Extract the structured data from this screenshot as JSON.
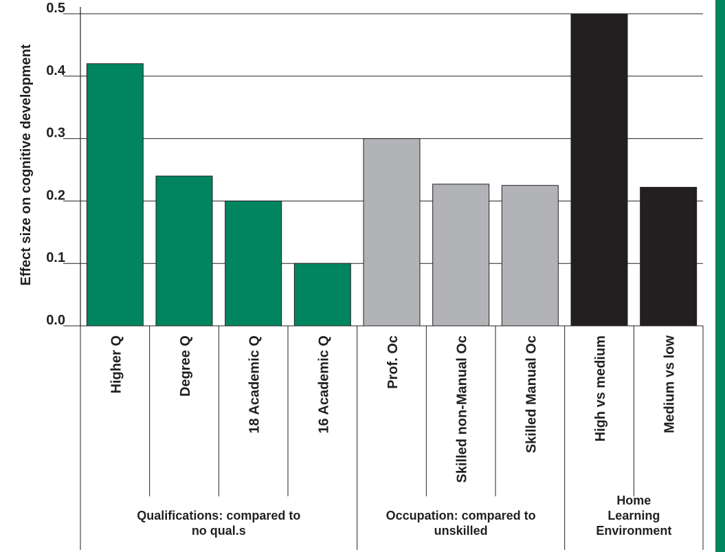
{
  "chart_data": {
    "type": "bar",
    "ylabel": "Effect size on cognitive development",
    "ylim": [
      0,
      0.5
    ],
    "yticks": [
      "0.0",
      "0.1",
      "0.2",
      "0.3",
      "0.4",
      "0.5"
    ],
    "grid": true,
    "categories": [
      "Higher Q",
      "Degree Q",
      "18 Academic Q",
      "16 Academic Q",
      "Prof. Oc",
      "Skilled non-Manual Oc",
      "Skilled Manual Oc",
      "High vs medium",
      "Medium vs low"
    ],
    "values": [
      0.42,
      0.24,
      0.2,
      0.1,
      0.3,
      0.227,
      0.225,
      0.5,
      0.222
    ],
    "colors": [
      "#00855f",
      "#00855f",
      "#00855f",
      "#00855f",
      "#b1b3b6",
      "#b1b3b6",
      "#b1b3b6",
      "#231f20",
      "#231f20"
    ],
    "groups": [
      {
        "lines": [
          "Qualifications: compared to",
          "no qual.s"
        ],
        "start": 0,
        "end": 3
      },
      {
        "lines": [
          "Occupation: compared to",
          "unskilled"
        ],
        "start": 4,
        "end": 6
      },
      {
        "lines": [
          "Home",
          "Learning",
          "Environment"
        ],
        "start": 7,
        "end": 8
      }
    ]
  },
  "accent_strip_color": "#00855f"
}
